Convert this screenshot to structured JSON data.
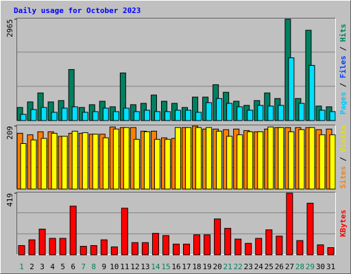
{
  "title": "Daily usage for October 2023",
  "chart_data": [
    {
      "type": "bar",
      "ylim": [
        0,
        2965
      ],
      "yticks": [
        2965
      ],
      "ylabel_parts": [
        {
          "text": "Pages",
          "color": "#00c8ff"
        },
        {
          "text": " / ",
          "color": "#000000"
        },
        {
          "text": "Files",
          "color": "#0040ff"
        },
        {
          "text": " / ",
          "color": "#000000"
        },
        {
          "text": "Hits",
          "color": "#008060"
        }
      ],
      "series": [
        {
          "color": "#008060",
          "values": [
            383,
            545,
            807,
            545,
            585,
            1493,
            383,
            464,
            565,
            403,
            1392,
            464,
            504,
            746,
            565,
            504,
            383,
            686,
            686,
            1049,
            827,
            565,
            444,
            585,
            807,
            645,
            2965,
            645,
            2642,
            424,
            403
          ]
        },
        {
          "color": "#00e0ff",
          "values": [
            182,
            323,
            383,
            242,
            363,
            403,
            242,
            262,
            363,
            262,
            363,
            262,
            303,
            262,
            262,
            303,
            303,
            242,
            524,
            645,
            504,
            403,
            303,
            444,
            424,
            444,
            1835,
            504,
            1614,
            303,
            262
          ]
        }
      ]
    },
    {
      "type": "bar",
      "ylim": [
        0,
        209
      ],
      "yticks": [
        209
      ],
      "ylabel_parts": [
        {
          "text": "Sites",
          "color": "#ff8000"
        },
        {
          "text": " / ",
          "color": "#000000"
        },
        {
          "text": "Visits",
          "color": "#e8e000"
        }
      ],
      "series": [
        {
          "color": "#ff8000",
          "values": [
            185,
            180,
            190,
            190,
            175,
            185,
            185,
            182,
            182,
            206,
            204,
            204,
            192,
            192,
            170,
            168,
            204,
            209,
            199,
            199,
            197,
            199,
            194,
            190,
            199,
            204,
            204,
            204,
            204,
            197,
            199
          ]
        },
        {
          "color": "#ffff00",
          "values": [
            151,
            163,
            168,
            185,
            175,
            192,
            187,
            182,
            170,
            199,
            204,
            165,
            190,
            165,
            165,
            204,
            204,
            204,
            204,
            192,
            175,
            180,
            190,
            190,
            206,
            204,
            190,
            197,
            204,
            180,
            180
          ]
        }
      ]
    },
    {
      "type": "bar",
      "ylim": [
        0,
        419
      ],
      "yticks": [
        419
      ],
      "ylabel_parts": [
        {
          "text": "KBytes",
          "color": "#ff0000"
        }
      ],
      "categories": [
        "1",
        "2",
        "3",
        "4",
        "5",
        "6",
        "7",
        "8",
        "9",
        "10",
        "11",
        "12",
        "13",
        "14",
        "15",
        "16",
        "17",
        "18",
        "19",
        "20",
        "21",
        "22",
        "23",
        "24",
        "25",
        "26",
        "27",
        "28",
        "29",
        "30",
        "31"
      ],
      "highlight": {
        "color": "#008060",
        "categories": [
          "1",
          "7",
          "8",
          "14",
          "15",
          "21",
          "22",
          "28",
          "29"
        ]
      },
      "series": [
        {
          "color": "#ff0000",
          "values": [
            63,
            102,
            175,
            112,
            112,
            331,
            58,
            63,
            102,
            54,
            317,
            83,
            83,
            146,
            131,
            73,
            73,
            136,
            136,
            244,
            180,
            107,
            78,
            112,
            170,
            127,
            419,
            97,
            351,
            68,
            49
          ]
        }
      ]
    }
  ]
}
